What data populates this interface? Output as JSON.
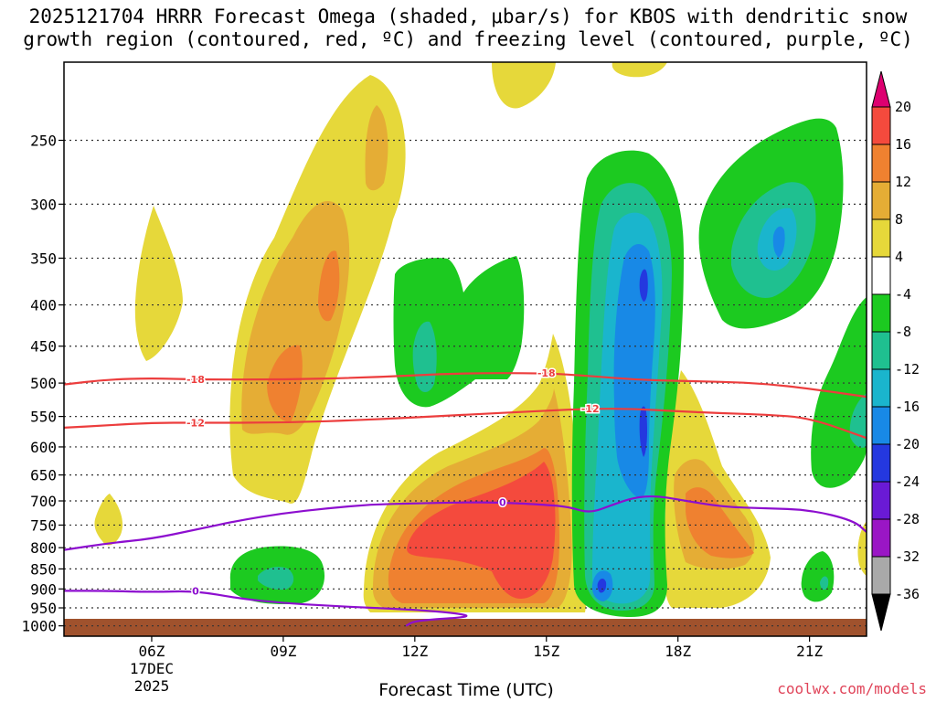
{
  "chart_data": {
    "type": "heatmap",
    "title_line1": "2025121704 HRRR Forecast Omega (shaded, μbar/s) for KBOS with dendritic snow",
    "title_line2": "growth region (contoured, red, ºC) and freezing level (contoured, purple, ºC)",
    "xlabel": "Forecast Time (UTC)",
    "credit": "coolwx.com/models",
    "x_range_hours": [
      4,
      22.3
    ],
    "x_ticks": [
      {
        "hour": 6,
        "label": "06Z",
        "date_line1": "17DEC",
        "date_line2": "2025"
      },
      {
        "hour": 9,
        "label": "09Z"
      },
      {
        "hour": 12,
        "label": "12Z"
      },
      {
        "hour": 15,
        "label": "15Z"
      },
      {
        "hour": 18,
        "label": "18Z"
      },
      {
        "hour": 21,
        "label": "21Z"
      }
    ],
    "y_scale": "pressure (log)",
    "y_range_hpa": [
      200,
      1030
    ],
    "y_ticks": [
      250,
      300,
      350,
      400,
      450,
      500,
      550,
      600,
      650,
      700,
      750,
      800,
      850,
      900,
      950,
      1000
    ],
    "colorbar_labels": [
      "20",
      "16",
      "12",
      "8",
      "4",
      "-4",
      "-8",
      "-12",
      "-16",
      "-20",
      "-24",
      "-28",
      "-32",
      "-36"
    ],
    "colorbar_colors": [
      "#dd0070",
      "#f44a3d",
      "#ef8130",
      "#e5ad35",
      "#e6d83a",
      "#ffffff",
      "#1cca20",
      "#1fc090",
      "#1ab5cd",
      "#1889e6",
      "#2438df",
      "#6a1ad5",
      "#9a16c5",
      "#a9a9a9"
    ],
    "contours": [
      {
        "name": "dgz-top",
        "label": "-18",
        "color": "#ec3d3d",
        "points": [
          [
            4,
            502
          ],
          [
            5,
            495
          ],
          [
            6,
            493
          ],
          [
            7,
            495
          ],
          [
            9,
            495
          ],
          [
            11,
            492
          ],
          [
            13,
            486
          ],
          [
            15,
            486
          ],
          [
            16,
            490
          ],
          [
            17,
            495
          ],
          [
            18,
            497
          ],
          [
            19,
            498
          ],
          [
            20,
            501
          ],
          [
            21,
            508
          ],
          [
            22.3,
            520
          ]
        ],
        "label_hours": [
          7,
          15
        ]
      },
      {
        "name": "dgz-bottom",
        "label": "-12",
        "color": "#ec3d3d",
        "points": [
          [
            4,
            568
          ],
          [
            5,
            564
          ],
          [
            6,
            560
          ],
          [
            7,
            560
          ],
          [
            9,
            560
          ],
          [
            11,
            555
          ],
          [
            13,
            548
          ],
          [
            15,
            541
          ],
          [
            16,
            538
          ],
          [
            17,
            538
          ],
          [
            18,
            542
          ],
          [
            19,
            545
          ],
          [
            20,
            547
          ],
          [
            21,
            552
          ],
          [
            22.3,
            585
          ]
        ],
        "label_hours": [
          7,
          16
        ]
      },
      {
        "name": "freezing-level-upper",
        "label": "0",
        "color": "#8d0ecf",
        "points": [
          [
            4,
            805
          ],
          [
            5,
            790
          ],
          [
            6,
            780
          ],
          [
            7,
            760
          ],
          [
            8,
            740
          ],
          [
            9,
            725
          ],
          [
            10,
            715
          ],
          [
            11,
            707
          ],
          [
            12,
            705
          ],
          [
            13,
            703
          ],
          [
            14,
            703
          ],
          [
            15,
            708
          ],
          [
            15.5,
            712
          ],
          [
            16,
            725
          ],
          [
            16.5,
            708
          ],
          [
            17,
            693
          ],
          [
            17.5,
            690
          ],
          [
            18,
            697
          ],
          [
            19,
            712
          ],
          [
            20,
            715
          ],
          [
            21,
            718
          ],
          [
            22,
            740
          ],
          [
            22.3,
            765
          ]
        ],
        "label_hours": [
          14
        ]
      },
      {
        "name": "freezing-level-lower",
        "label": "0",
        "color": "#8d0ecf",
        "points": [
          [
            4,
            905
          ],
          [
            5,
            905
          ],
          [
            6,
            908
          ],
          [
            7,
            905
          ],
          [
            8,
            925
          ],
          [
            9,
            937
          ],
          [
            10,
            944
          ],
          [
            11,
            950
          ],
          [
            12,
            955
          ],
          [
            13,
            965
          ],
          [
            13.3,
            975
          ],
          [
            12,
            985
          ],
          [
            11.8,
            1000
          ]
        ],
        "label_hours": [
          7
        ]
      }
    ]
  }
}
